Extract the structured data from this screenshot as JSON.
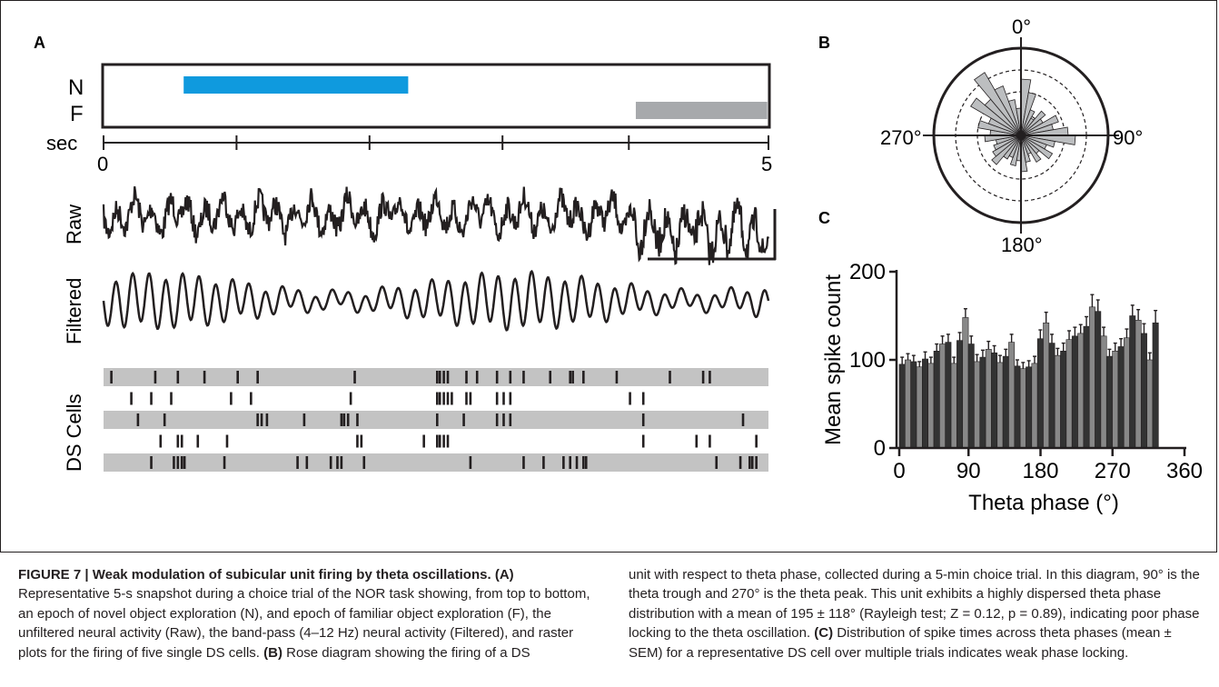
{
  "panels": {
    "A": {
      "label": "A",
      "epoch_labels": [
        "N",
        "F"
      ],
      "time_axis": {
        "label": "sec",
        "start": "0",
        "end": "5"
      },
      "trace_labels": {
        "raw": "Raw",
        "filtered": "Filtered",
        "cells": "DS Cells"
      },
      "epochs": [
        {
          "name": "N",
          "start_s": 0.5,
          "end_s": 2.25,
          "color": "#0f9ade"
        },
        {
          "name": "F",
          "start_s": 3.9,
          "end_s": 4.95,
          "color": "#a7a9ac"
        }
      ],
      "raster_row_color": "#c3c3c3",
      "n_cells": 5
    },
    "B": {
      "label": "B",
      "angle_labels": [
        "0°",
        "90°",
        "180°",
        "270°"
      ]
    },
    "C": {
      "label": "C",
      "chart_data": {
        "type": "bar",
        "xlabel": "Theta phase (°)",
        "ylabel": "Mean spike count",
        "xlim": [
          0,
          360
        ],
        "ylim": [
          0,
          200
        ],
        "xticks": [
          "0",
          "90",
          "180",
          "270",
          "360"
        ],
        "yticks": [
          "0",
          "100",
          "200"
        ],
        "bar_width_deg": 7.2,
        "values": [
          95,
          100,
          98,
          92,
          101,
          96,
          110,
          118,
          120,
          96,
          122,
          148,
          118,
          98,
          103,
          112,
          108,
          97,
          104,
          120,
          93,
          90,
          92,
          96,
          124,
          142,
          119,
          105,
          110,
          123,
          127,
          130,
          138,
          160,
          155,
          127,
          104,
          110,
          115,
          125,
          150,
          145,
          130,
          100,
          142
        ],
        "sem": [
          8,
          7,
          7,
          6,
          8,
          7,
          8,
          9,
          9,
          7,
          9,
          10,
          9,
          8,
          8,
          9,
          8,
          8,
          8,
          9,
          7,
          7,
          7,
          8,
          10,
          12,
          10,
          8,
          9,
          10,
          10,
          10,
          11,
          14,
          13,
          10,
          8,
          9,
          9,
          10,
          12,
          12,
          11,
          8,
          14
        ],
        "colors": [
          "#333333",
          "#888888"
        ]
      }
    }
  },
  "caption": {
    "title": "FIGURE 7 | Weak modulation of subicular unit firing by theta oscillations.",
    "a_tag": "(A)",
    "a_text": " Representative 5-s snapshot during a choice trial of the NOR task showing, from top to bottom, an epoch of novel object exploration (N), and epoch of familiar object exploration (F), the unfiltered neural activity (Raw), the band-pass (4–12 Hz) neural activity (Filtered), and raster plots for the firing of five single DS cells.",
    "b_tag": "(B)",
    "b_text_1": " Rose diagram showing the firing of a DS",
    "b_text_2": "unit with respect to theta phase, collected during a 5-min choice trial. In this diagram, 90° is the theta trough and 270° is the theta peak. This unit exhibits a highly dispersed theta phase distribution with a mean of 195 ± 118° (Rayleigh test; Z = 0.12, p = 0.89), indicating poor phase locking to the theta oscillation.",
    "c_tag": "(C)",
    "c_text": " Distribution of spike times across theta phases (mean ± SEM) for a representative DS cell over multiple trials indicates weak phase locking."
  }
}
